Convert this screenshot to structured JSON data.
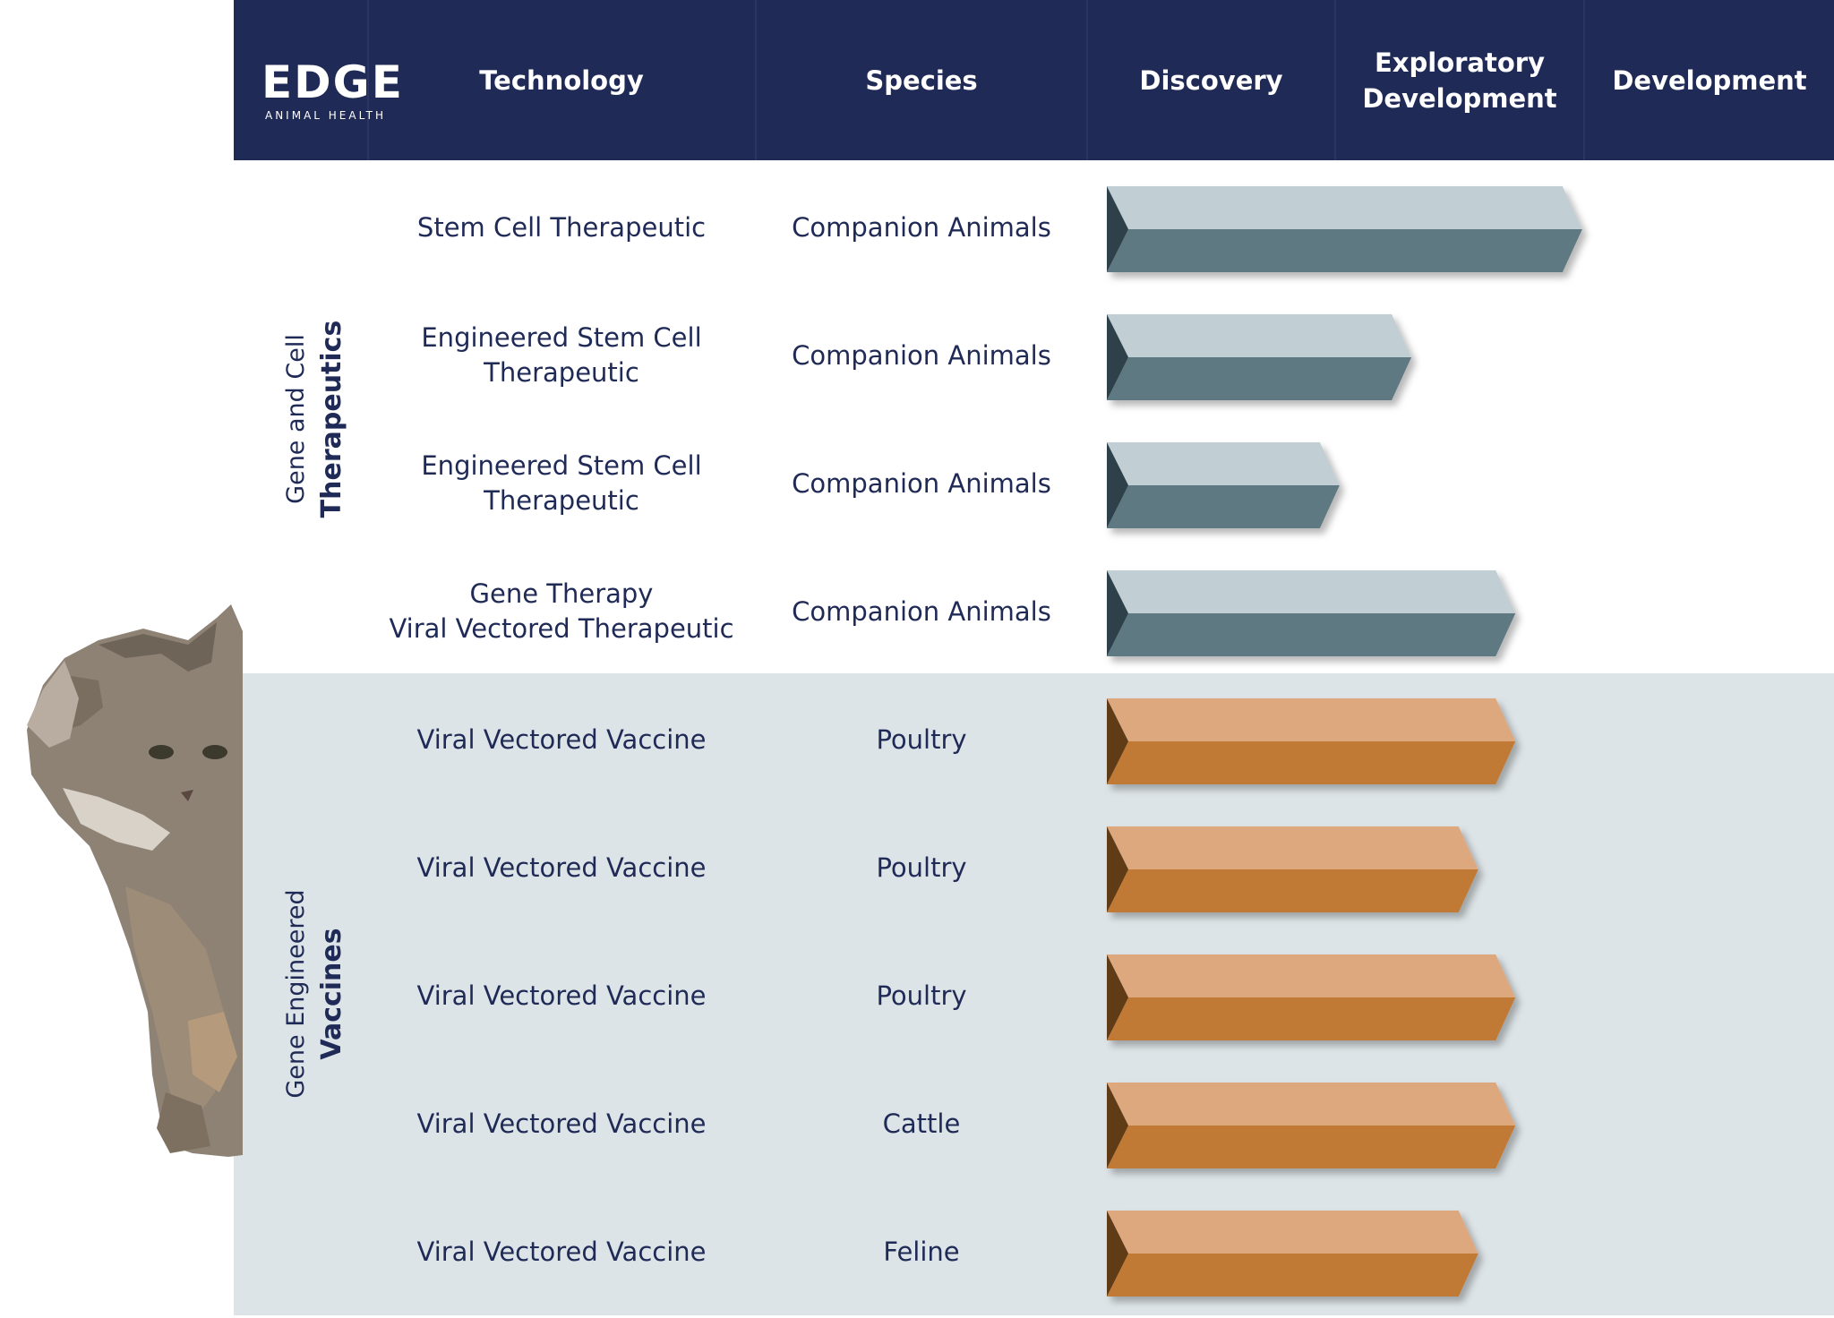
{
  "logo": {
    "wordmark": "EDGE",
    "tagline": "ANIMAL HEALTH"
  },
  "columns": {
    "technology": "Technology",
    "species": "Species",
    "discovery": "Discovery",
    "exploratory": "Exploratory\nDevelopment",
    "development": "Development"
  },
  "groups": [
    {
      "line1": "Gene and Cell",
      "line2": "Therapeutics"
    },
    {
      "line1": "Gene Engineered",
      "line2": "Vaccines"
    }
  ],
  "rows": [
    {
      "technology": "Stem Cell Therapeutic",
      "species": "Companion Animals"
    },
    {
      "technology": "Engineered Stem Cell\nTherapeutic",
      "species": "Companion Animals"
    },
    {
      "technology": "Engineered Stem Cell\nTherapeutic",
      "species": "Companion Animals"
    },
    {
      "technology": "Gene Therapy\nViral Vectored Therapeutic",
      "species": "Companion Animals"
    },
    {
      "technology": "Viral Vectored Vaccine",
      "species": "Poultry"
    },
    {
      "technology": "Viral Vectored Vaccine",
      "species": "Poultry"
    },
    {
      "technology": "Viral Vectored Vaccine",
      "species": "Poultry"
    },
    {
      "technology": "Viral Vectored Vaccine",
      "species": "Cattle"
    },
    {
      "technology": "Viral Vectored Vaccine",
      "species": "Feline"
    }
  ],
  "colors": {
    "header_bg": "#1f2a56",
    "text": "#1f2a56",
    "vaccine_band": "#dde4e7",
    "therapeutic_top": "#c1ced3",
    "therapeutic_bottom": "#5e7982",
    "therapeutic_end": "#2e4148",
    "vaccine_top": "#dea87f",
    "vaccine_bottom": "#c07a36",
    "vaccine_end": "#5e3a16"
  },
  "chart_data": {
    "type": "bar",
    "orientation": "horizontal",
    "stages": [
      "Discovery",
      "Exploratory Development",
      "Development"
    ],
    "value_unit": "pipeline stages completed (0–3)",
    "xlim": [
      0,
      3
    ],
    "categories": [
      "Stem Cell Therapeutic",
      "Engineered Stem Cell Therapeutic",
      "Engineered Stem Cell Therapeutic",
      "Gene Therapy Viral Vectored Therapeutic",
      "Viral Vectored Vaccine",
      "Viral Vectored Vaccine",
      "Viral Vectored Vaccine",
      "Viral Vectored Vaccine",
      "Viral Vectored Vaccine"
    ],
    "values": [
      1.92,
      1.23,
      0.94,
      1.65,
      1.65,
      1.5,
      1.65,
      1.65,
      1.5
    ],
    "group_index": [
      0,
      0,
      0,
      0,
      1,
      1,
      1,
      1,
      1
    ]
  }
}
